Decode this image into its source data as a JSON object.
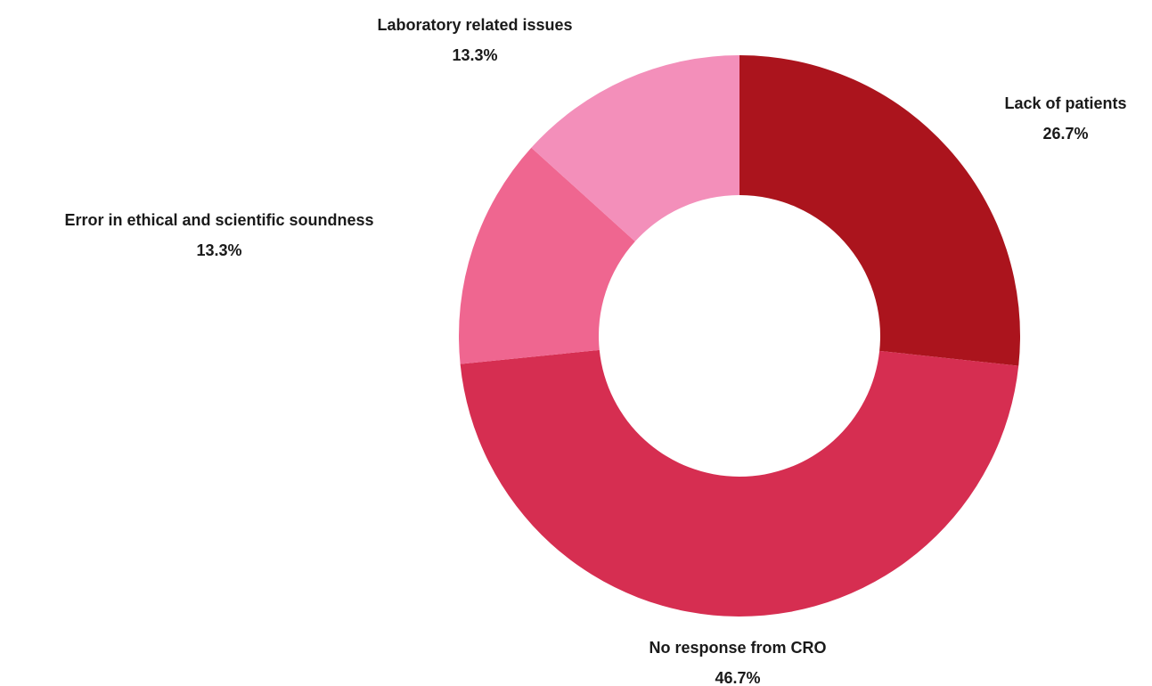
{
  "chart_data": {
    "type": "pie",
    "donut": true,
    "title": "",
    "start": "12 o'clock",
    "direction": "clockwise",
    "slices": [
      {
        "label": "Lack of patients",
        "value": 26.7,
        "value_label": "26.7%",
        "color": "#ab141d"
      },
      {
        "label": "No response from CRO",
        "value": 46.7,
        "value_label": "46.7%",
        "color": "#d62e51"
      },
      {
        "label": "Error in ethical and scientific soundness",
        "value": 13.3,
        "value_label": "13.3%",
        "color": "#ef6690"
      },
      {
        "label": "Laboratory related issues",
        "value": 13.3,
        "value_label": "13.3%",
        "color": "#f38fba"
      }
    ]
  }
}
